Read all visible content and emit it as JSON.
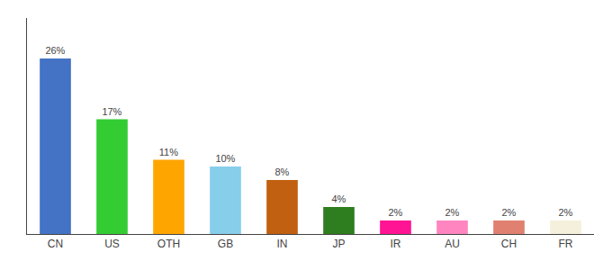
{
  "chart_data": {
    "type": "bar",
    "categories": [
      "CN",
      "US",
      "OTH",
      "GB",
      "IN",
      "JP",
      "IR",
      "AU",
      "CH",
      "FR"
    ],
    "values": [
      26,
      17,
      11,
      10,
      8,
      4,
      2,
      2,
      2,
      2
    ],
    "value_labels": [
      "26%",
      "17%",
      "11%",
      "10%",
      "8%",
      "4%",
      "2%",
      "2%",
      "2%",
      "2%"
    ],
    "data_labels": true,
    "colors": [
      "#4472C4",
      "#33CC33",
      "#FFA500",
      "#87CEEB",
      "#C06010",
      "#2E7D1E",
      "#FF1493",
      "#FF85C0",
      "#E08070",
      "#F5F0DC"
    ],
    "ylim": [
      0,
      32
    ],
    "grid": false,
    "tick_labels": "x"
  }
}
